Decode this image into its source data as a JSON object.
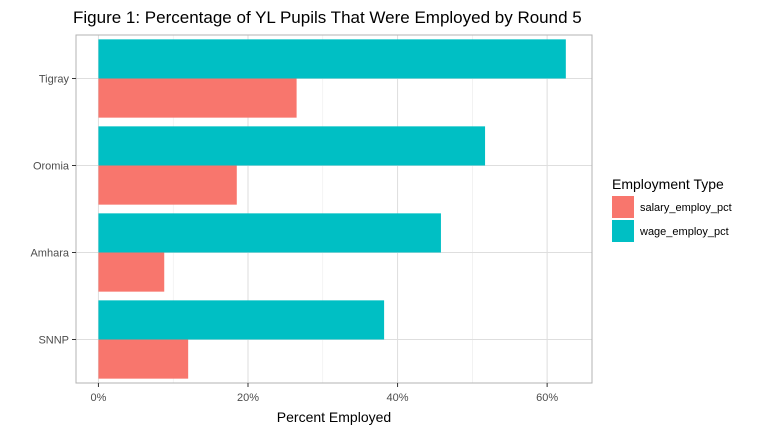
{
  "chart_data": {
    "type": "bar",
    "orientation": "horizontal",
    "title": "Figure 1: Percentage of YL Pupils That Were Employed by Round 5",
    "xlabel": "Percent Employed",
    "ylabel": "",
    "categories": [
      "Tigray",
      "Oromia",
      "Amhara",
      "SNNP"
    ],
    "xlim": [
      -3,
      66
    ],
    "x_ticks": [
      0,
      20,
      40,
      60
    ],
    "x_tick_labels": [
      "0%",
      "20%",
      "40%",
      "60%"
    ],
    "series": [
      {
        "name": "salary_employ_pct",
        "color": "#F8766D",
        "values": [
          26.5,
          18.5,
          8.8,
          12.0
        ]
      },
      {
        "name": "wage_employ_pct",
        "color": "#00BFC4",
        "values": [
          62.5,
          51.7,
          45.8,
          38.2
        ]
      }
    ],
    "legend": {
      "title": "Employment Type",
      "position": "right"
    },
    "grid": true,
    "panel_border": true
  }
}
